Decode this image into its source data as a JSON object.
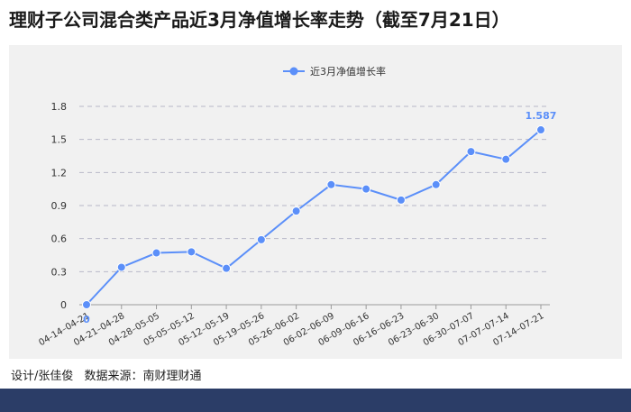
{
  "title": "理财子公司混合类产品近3月净值增长率走势（截至7月21日）",
  "credits": {
    "designer": "设计/张佳俊",
    "source": "数据来源：南财理财通"
  },
  "colors": {
    "line": "#5b8ff9",
    "panel": "#f1f1f1",
    "footer": "#2b3d67"
  },
  "chart_data": {
    "type": "line",
    "title": "理财子公司混合类产品近3月净值增长率走势（截至7月21日）",
    "legend_position": "top-center",
    "grid": true,
    "ylim": [
      0,
      1.8
    ],
    "yticks": [
      "0",
      "0.3",
      "0.6",
      "0.9",
      "1.2",
      "1.5",
      "1.8"
    ],
    "categories": [
      "04-14–04-21",
      "04-21–04-28",
      "04-28–05-05",
      "05-05–05-12",
      "05-12–05-19",
      "05-19–05-26",
      "05-26–06-02",
      "06-02–06-09",
      "06-09–06-16",
      "06-16–06-23",
      "06-23–06-30",
      "06-30–07-07",
      "07-07–07-14",
      "07-14–07-21"
    ],
    "series": [
      {
        "name": "近3月净值增长率",
        "values": [
          0,
          0.34,
          0.47,
          0.48,
          0.33,
          0.59,
          0.85,
          1.09,
          1.05,
          0.95,
          1.09,
          1.39,
          1.32,
          1.587
        ]
      }
    ],
    "data_labels": [
      {
        "index": 0,
        "text": "0"
      },
      {
        "index": 13,
        "text": "1.587"
      }
    ]
  }
}
